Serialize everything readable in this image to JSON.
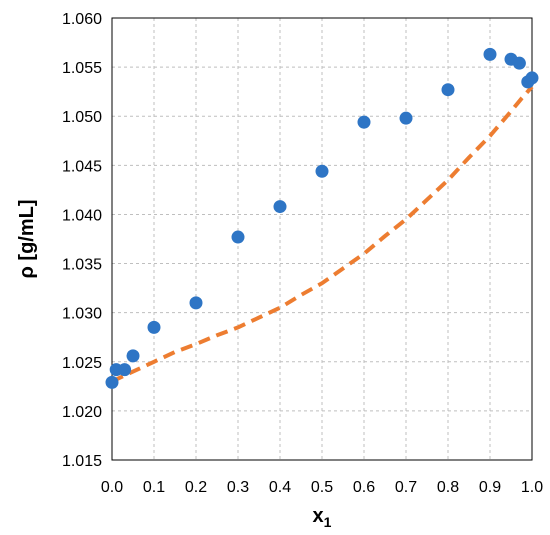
{
  "chart_data": {
    "type": "scatter",
    "title": "",
    "xlabel": "x",
    "xlabel_sub": "1",
    "ylabel": "ρ [g/mL]",
    "xlim": [
      0.0,
      1.0
    ],
    "ylim": [
      1.015,
      1.06
    ],
    "x_ticks": [
      0.0,
      0.1,
      0.2,
      0.3,
      0.4,
      0.5,
      0.6,
      0.7,
      0.8,
      0.9,
      1.0
    ],
    "x_tick_labels": [
      "0.0",
      "0.1",
      "0.2",
      "0.3",
      "0.4",
      "0.5",
      "0.6",
      "0.7",
      "0.8",
      "0.9",
      "1.0"
    ],
    "y_ticks": [
      1.015,
      1.02,
      1.025,
      1.03,
      1.035,
      1.04,
      1.045,
      1.05,
      1.055,
      1.06
    ],
    "y_tick_labels": [
      "1.015",
      "1.020",
      "1.025",
      "1.030",
      "1.035",
      "1.040",
      "1.045",
      "1.050",
      "1.055",
      "1.060"
    ],
    "grid": true,
    "legend": "none",
    "series": [
      {
        "kind": "markers",
        "color": "#2e75c5",
        "x": [
          0.0,
          0.01,
          0.03,
          0.05,
          0.1,
          0.2,
          0.3,
          0.4,
          0.5,
          0.6,
          0.7,
          0.8,
          0.9,
          0.95,
          0.97,
          0.99,
          1.0
        ],
        "y": [
          1.0229,
          1.0242,
          1.0242,
          1.0256,
          1.0285,
          1.031,
          1.0377,
          1.0408,
          1.0444,
          1.0494,
          1.0498,
          1.0527,
          1.0563,
          1.0558,
          1.0554,
          1.0535,
          1.0539
        ]
      },
      {
        "kind": "dashed-line",
        "color": "#ed7d31",
        "x": [
          0.0,
          0.05,
          0.1,
          0.15,
          0.2,
          0.25,
          0.3,
          0.35,
          0.4,
          0.45,
          0.5,
          0.55,
          0.6,
          0.65,
          0.7,
          0.75,
          0.8,
          0.85,
          0.9,
          0.95,
          0.975,
          1.0
        ],
        "y": [
          1.023,
          1.024,
          1.025,
          1.026,
          1.0268,
          1.0277,
          1.0285,
          1.0295,
          1.0305,
          1.0318,
          1.033,
          1.0345,
          1.036,
          1.0378,
          1.0395,
          1.0415,
          1.0435,
          1.0458,
          1.048,
          1.0505,
          1.0518,
          1.053
        ]
      }
    ]
  }
}
